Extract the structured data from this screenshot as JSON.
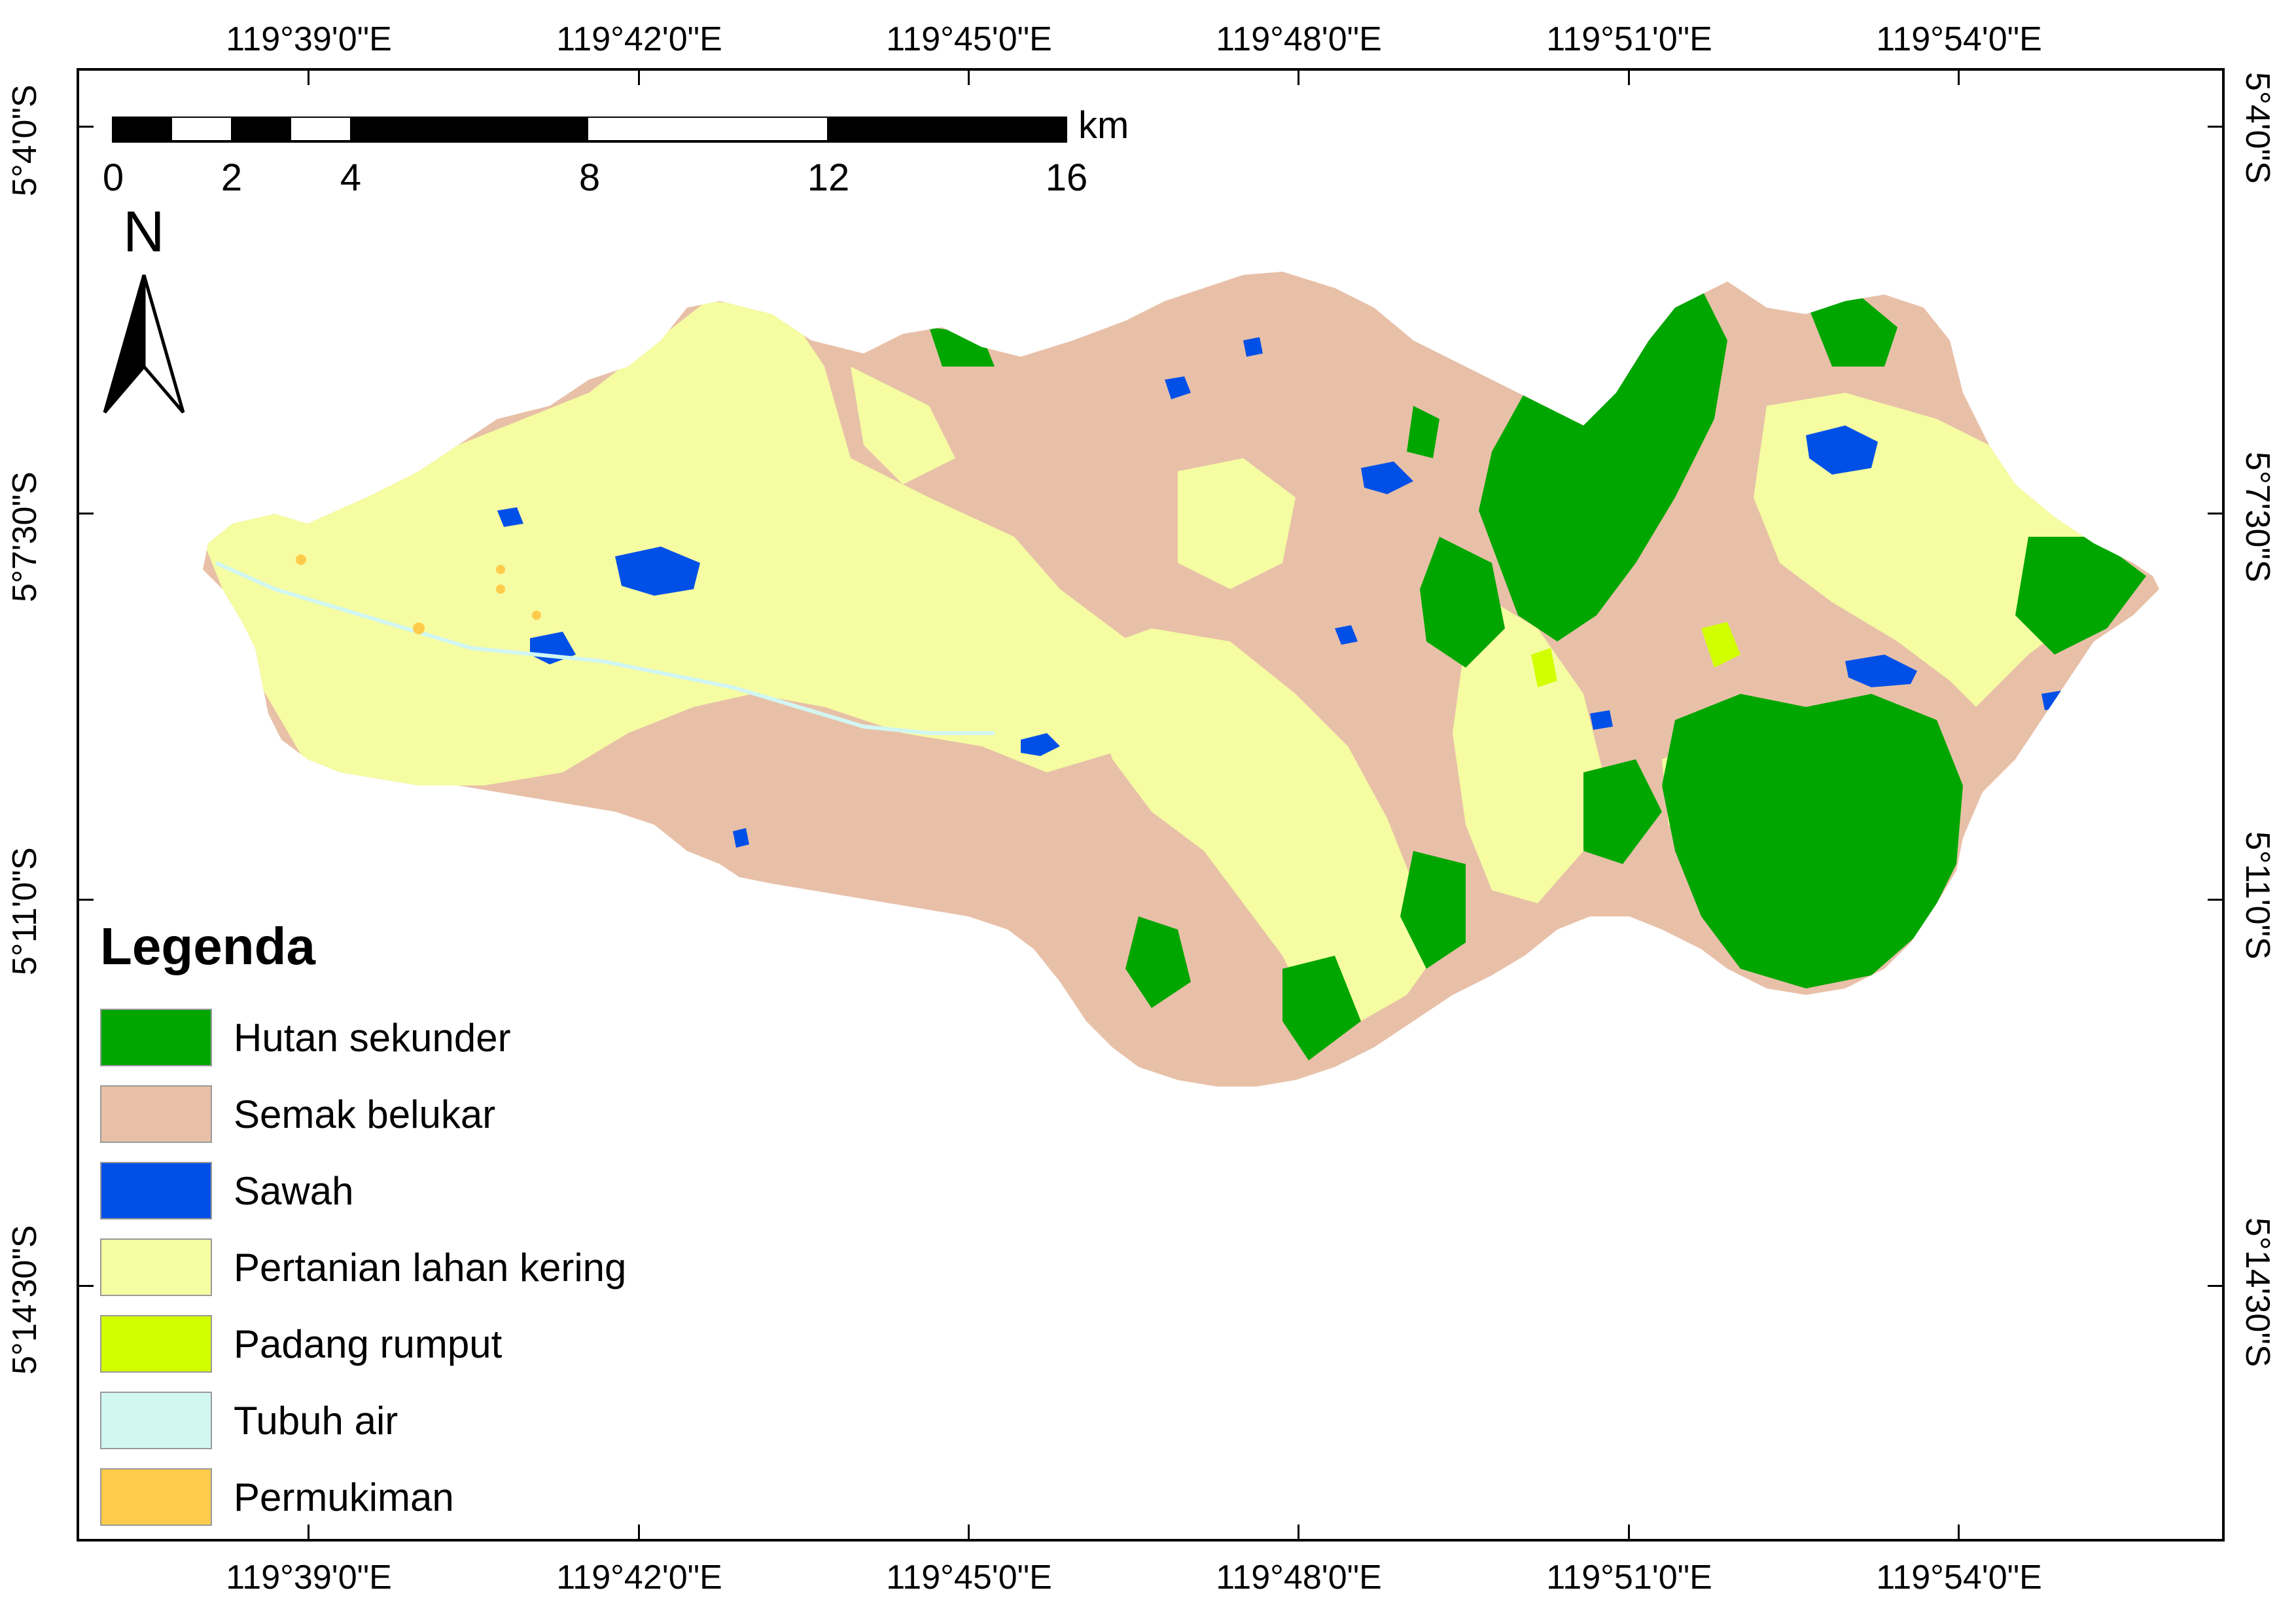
{
  "graticule": {
    "longitude_labels": [
      "119°39'0\"E",
      "119°42'0\"E",
      "119°45'0\"E",
      "119°48'0\"E",
      "119°51'0\"E",
      "119°54'0\"E"
    ],
    "latitude_labels": [
      "5°4'0\"S",
      "5°7'30\"S",
      "5°11'0\"S",
      "5°14'30\"S"
    ]
  },
  "scale_bar": {
    "unit": "km",
    "labels": [
      "0",
      "2",
      "4",
      "8",
      "12",
      "16"
    ]
  },
  "north_arrow": {
    "letter": "N",
    "icon": "north-arrow-icon"
  },
  "legend": {
    "title": "Legenda",
    "items": [
      {
        "label": "Hutan sekunder",
        "color": "#00a600"
      },
      {
        "label": "Semak belukar",
        "color": "#e8c0a8"
      },
      {
        "label": "Sawah",
        "color": "#0050e8"
      },
      {
        "label": "Pertanian lahan kering",
        "color": "#f5fca2"
      },
      {
        "label": "Padang rumput",
        "color": "#d2ff00"
      },
      {
        "label": "Tubuh air",
        "color": "#d2f7f2"
      },
      {
        "label": "Permukiman",
        "color": "#ffcb4a"
      }
    ]
  }
}
